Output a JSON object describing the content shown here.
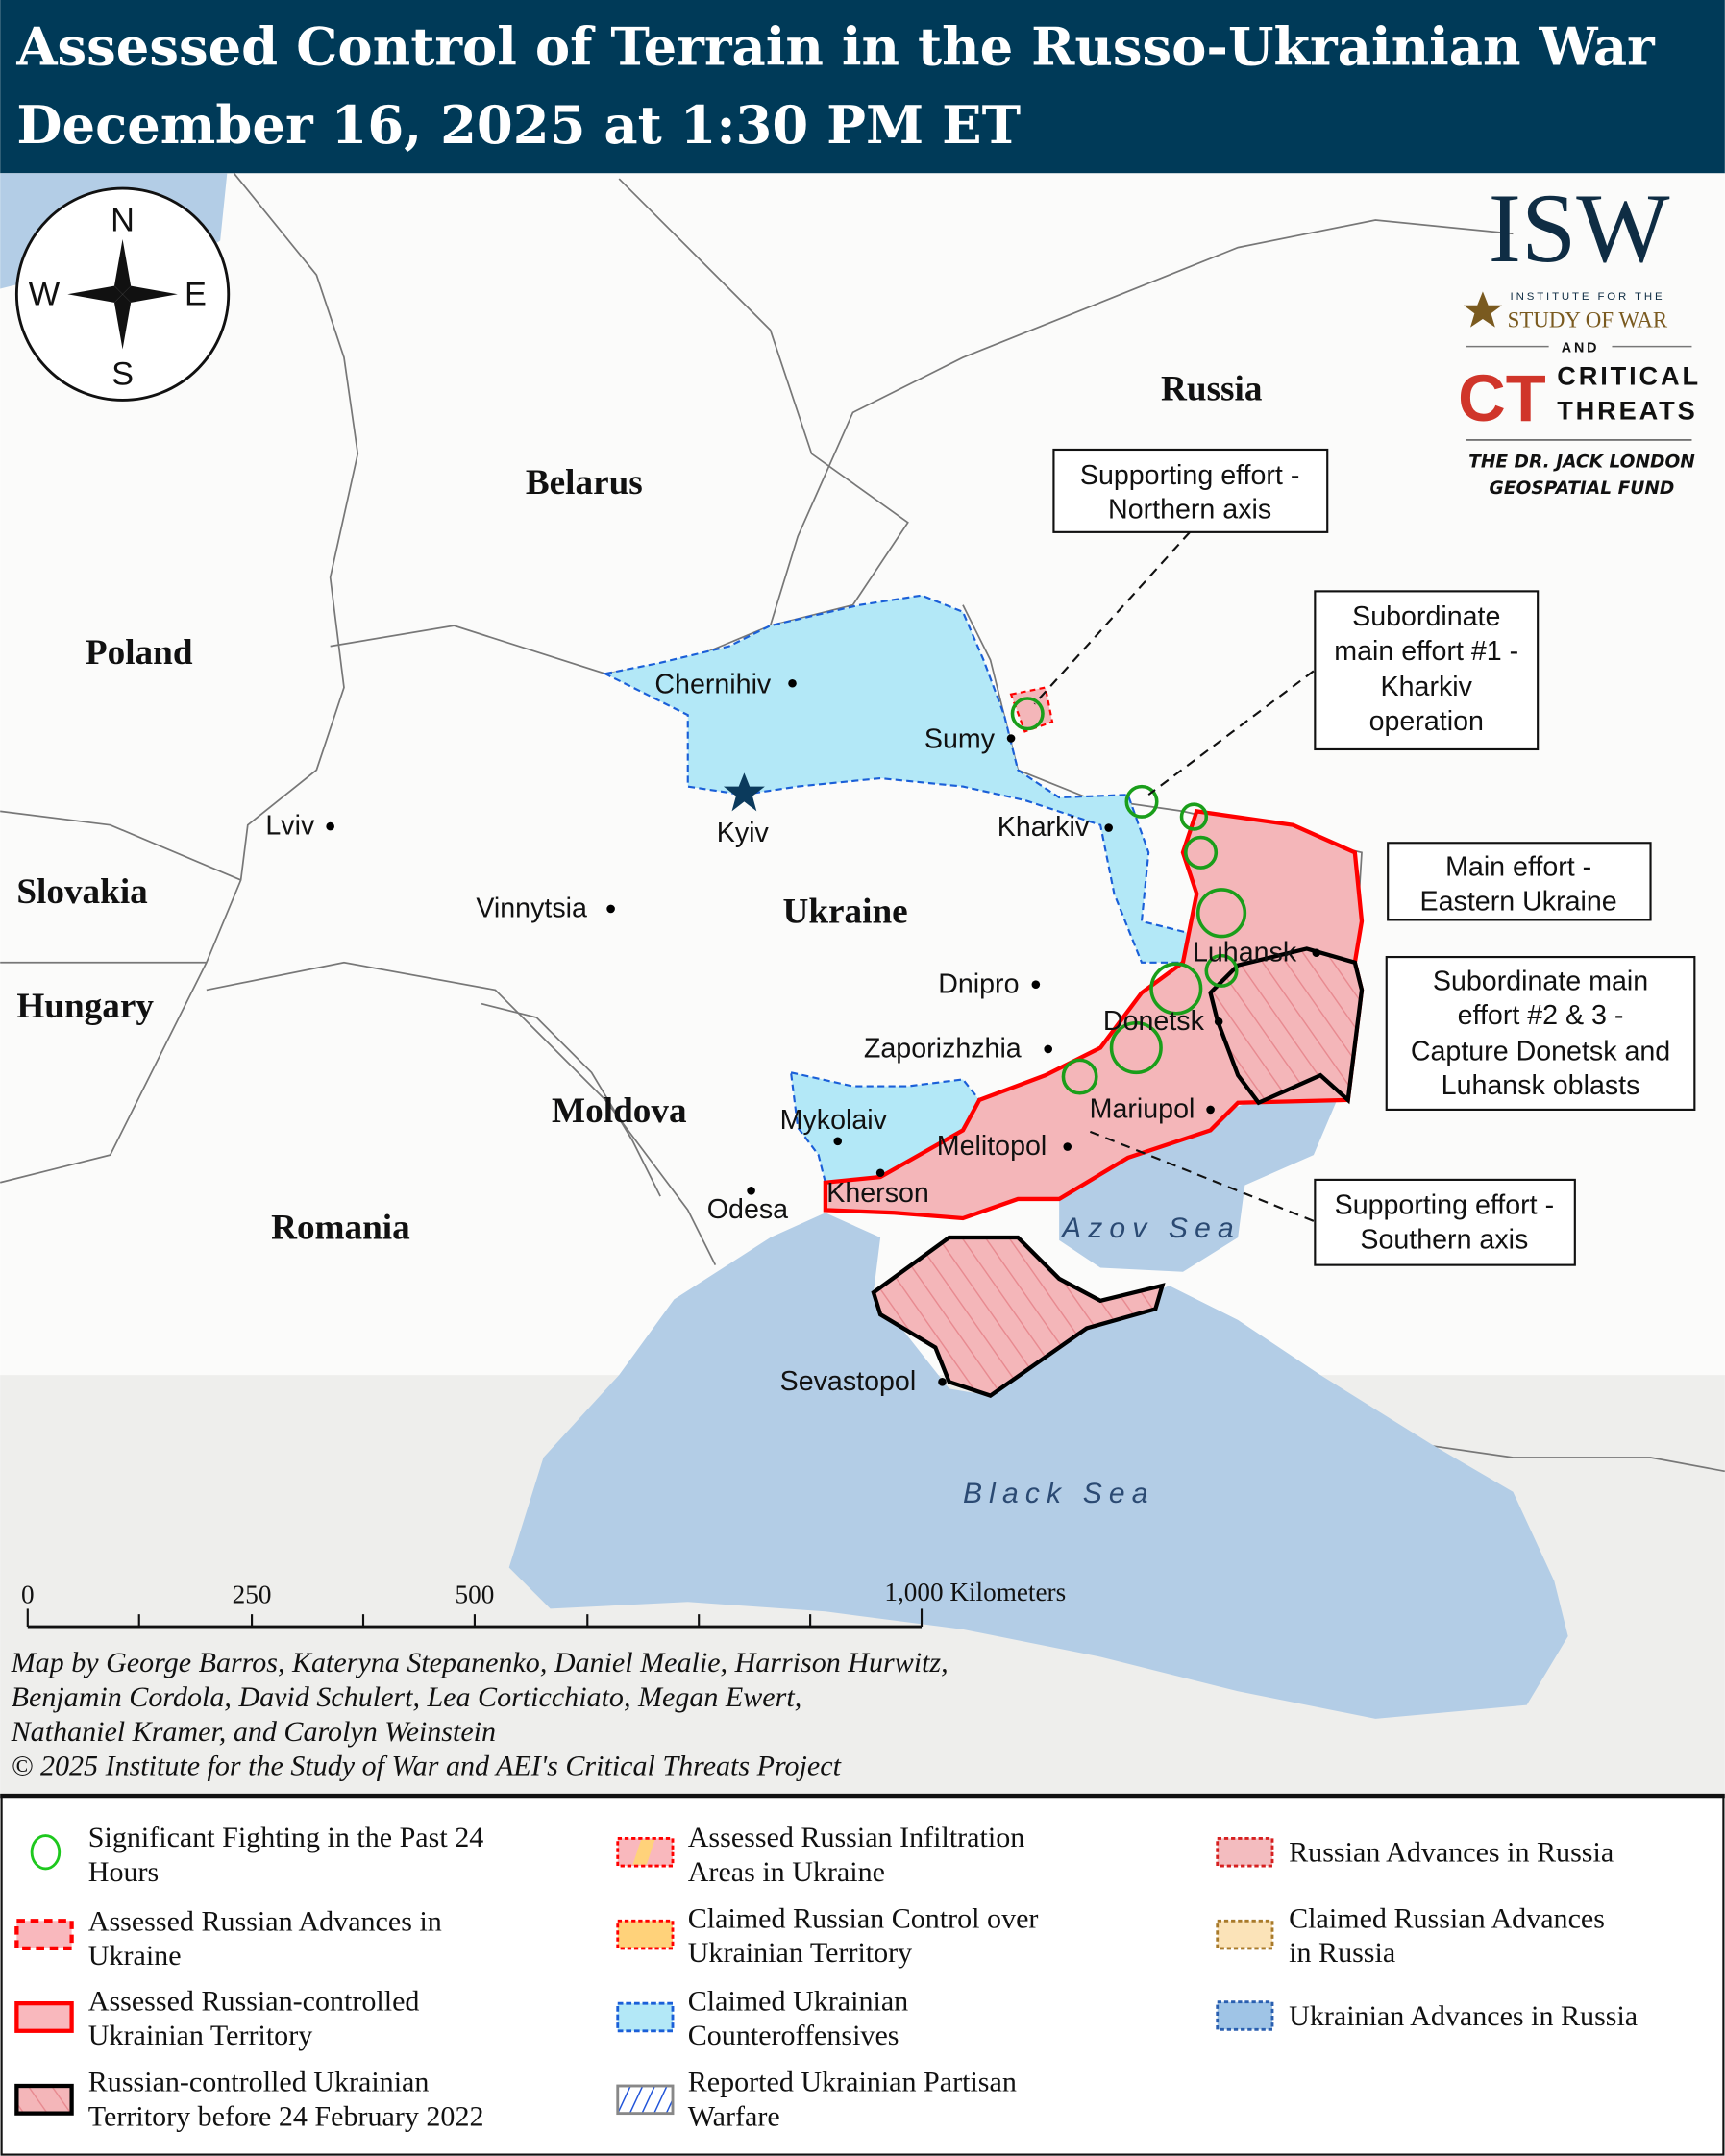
{
  "header": {
    "title": "Assessed Control of Terrain in the Russo-Ukrainian War",
    "subtitle": "December 16, 2025 at 1:30 PM ET",
    "background": "#003a58"
  },
  "logo": {
    "isw": "ISW",
    "isw_line1": "INSTITUTE FOR THE",
    "isw_line2": "STUDY OF WAR",
    "and": "AND",
    "ct": "CT",
    "ct_line1": "CRITICAL",
    "ct_line2": "THREATS",
    "fund_line1": "THE DR. JACK LONDON",
    "fund_line2": "GEOSPATIAL FUND"
  },
  "compass": {
    "n": "N",
    "s": "S",
    "e": "E",
    "w": "W"
  },
  "map": {
    "countries": [
      "Russia",
      "Belarus",
      "Poland",
      "Slovakia",
      "Hungary",
      "Ukraine",
      "Moldova",
      "Romania"
    ],
    "cities": [
      "Chernihiv",
      "Sumy",
      "Kyiv",
      "Kharkiv",
      "Lviv",
      "Vinnytsia",
      "Luhansk",
      "Dnipro",
      "Donetsk",
      "Zaporizhzhia",
      "Mariupol",
      "Mykolaiv",
      "Melitopol",
      "Kherson",
      "Odesa",
      "Sevastopol"
    ],
    "seas": [
      "Azov Sea",
      "Black Sea"
    ],
    "callouts": [
      [
        "Supporting effort -",
        "Northern axis"
      ],
      [
        "Subordinate",
        "main effort #1 -",
        "Kharkiv",
        "operation"
      ],
      [
        "Main effort -",
        "Eastern Ukraine"
      ],
      [
        "Subordinate main",
        "effort #2 & 3 -",
        "Capture Donetsk and",
        "Luhansk oblasts"
      ],
      [
        "Supporting effort -",
        "Southern axis"
      ]
    ],
    "colors": {
      "water": "#b3cde6",
      "russian_control": "#f4b6b9",
      "russian_border": "#ff0000",
      "ukrainian_counteroffensive": "#b3e8f7",
      "fighting_circle": "#1a9e1a"
    }
  },
  "scale_bar": {
    "labels": [
      "0",
      "250",
      "500",
      "1,000 Kilometers"
    ]
  },
  "credits": [
    "Map by George Barros, Kateryna Stepanenko, Daniel Mealie, Harrison Hurwitz,",
    "Benjamin Cordola, David Schulert, Lea Corticchiato, Megan Ewert,",
    "Nathaniel Kramer, and Carolyn Weinstein",
    "© 2025 Institute for the Study of War and AEI's Critical Threats Project"
  ],
  "legend": [
    {
      "lines": [
        "Significant Fighting in the Past 24",
        "Hours"
      ],
      "symbol": "green-circle"
    },
    {
      "lines": [
        "Assessed Russian Advances in",
        "Ukraine"
      ],
      "symbol": "pink-red-dashed"
    },
    {
      "lines": [
        "Assessed Russian-controlled",
        "Ukrainian Territory"
      ],
      "symbol": "pink-red-solid"
    },
    {
      "lines": [
        "Russian-controlled Ukrainian",
        "Territory before 24 February 2022"
      ],
      "symbol": "black-hatched"
    },
    {
      "lines": [
        "Assessed Russian Infiltration",
        "Areas in Ukraine"
      ],
      "symbol": "pink-orange-stripe"
    },
    {
      "lines": [
        "Claimed Russian Control over",
        "Ukrainian Territory"
      ],
      "symbol": "orange-dotted"
    },
    {
      "lines": [
        "Claimed Ukrainian",
        "Counteroffensives"
      ],
      "symbol": "lightblue-dashed"
    },
    {
      "lines": [
        "Reported Ukrainian Partisan",
        "Warfare"
      ],
      "symbol": "blue-hatched"
    },
    {
      "lines": [
        "Russian Advances in Russia"
      ],
      "symbol": "pink-dotted"
    },
    {
      "lines": [
        "Claimed Russian Advances",
        "in Russia"
      ],
      "symbol": "tan-dotted"
    },
    {
      "lines": [
        "Ukrainian Advances in Russia"
      ],
      "symbol": "blue-dotted"
    }
  ]
}
